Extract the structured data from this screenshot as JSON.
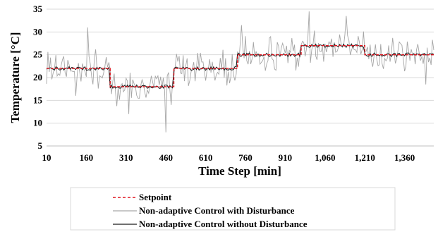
{
  "chart_data": {
    "type": "line",
    "title": "",
    "xlabel": "Time Step [min]",
    "ylabel": "Temperature [°C]",
    "xlim": [
      10,
      1470
    ],
    "ylim": [
      5,
      35
    ],
    "x_tick_labels": [
      "10",
      "160",
      "310",
      "460",
      "610",
      "760",
      "910",
      "1,060",
      "1,210",
      "1,360"
    ],
    "y_tick_labels": [
      "5",
      "10",
      "15",
      "20",
      "25",
      "30",
      "35"
    ],
    "grid": "horizontal",
    "legend_position": "bottom",
    "colors": {
      "setpoint": "#e0141e",
      "with_disturbance": "#a6a6a6",
      "without_disturbance": "#1a1a1a",
      "grid": "#d9d9d9"
    },
    "series": [
      {
        "name": "Setpoint",
        "style": "dashed",
        "steps": [
          {
            "from": 10,
            "to": 250,
            "value": 22
          },
          {
            "from": 250,
            "to": 490,
            "value": 18
          },
          {
            "from": 490,
            "to": 730,
            "value": 22
          },
          {
            "from": 730,
            "to": 970,
            "value": 25
          },
          {
            "from": 970,
            "to": 1210,
            "value": 27
          },
          {
            "from": 1210,
            "to": 1470,
            "value": 25
          }
        ]
      },
      {
        "name": "Non-adaptive Control with Disturbance",
        "style": "solid",
        "noise_amplitude": 4.5,
        "extremes": [
          {
            "x": 120,
            "y": 16
          },
          {
            "x": 165,
            "y": 31
          },
          {
            "x": 320,
            "y": 12
          },
          {
            "x": 462,
            "y": 8
          },
          {
            "x": 745,
            "y": 31.5
          },
          {
            "x": 1000,
            "y": 34.5
          },
          {
            "x": 1140,
            "y": 33.5
          },
          {
            "x": 1440,
            "y": 18.5
          }
        ]
      },
      {
        "name": "Non-adaptive Control without Disturbance",
        "style": "solid",
        "noise_amplitude": 0.4
      }
    ],
    "legend": [
      "Setpoint",
      "Non-adaptive Control with Disturbance",
      "Non-adaptive Control without Disturbance"
    ]
  }
}
